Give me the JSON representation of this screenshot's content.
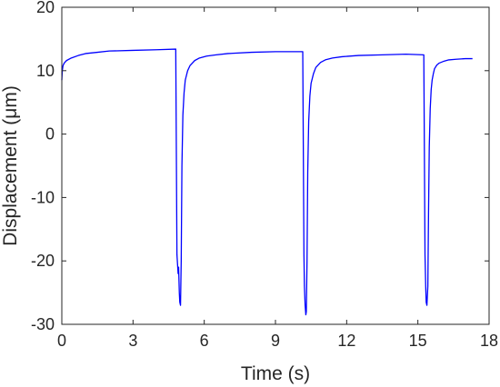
{
  "chart_data": {
    "type": "line",
    "title": "",
    "xlabel": "Time (s)",
    "ylabel": "Displacement (μm)",
    "xlim": [
      0,
      18
    ],
    "ylim": [
      -30,
      20
    ],
    "xticks": [
      0,
      3,
      6,
      9,
      12,
      15,
      18
    ],
    "yticks": [
      -30,
      -20,
      -10,
      0,
      10,
      20
    ],
    "xtick_labels": [
      "0",
      "3",
      "6",
      "9",
      "12",
      "15",
      "18"
    ],
    "ytick_labels": [
      "-30",
      "-20",
      "-10",
      "0",
      "10",
      "20"
    ],
    "grid": false,
    "box": true,
    "line_color": "#0000FF",
    "series": [
      {
        "x": [
          0.0,
          0.02,
          0.05,
          0.1,
          0.2,
          0.4,
          0.7,
          1.0,
          1.5,
          2.0,
          3.0,
          4.0,
          4.8,
          4.85,
          4.9,
          4.92,
          4.95,
          4.97,
          5.0,
          5.03,
          5.06,
          5.1,
          5.15,
          5.2,
          5.3,
          5.4,
          5.6,
          5.8,
          6.1,
          6.5,
          7.0,
          8.0,
          9.0,
          10.0,
          10.15,
          10.2,
          10.22,
          10.25,
          10.28,
          10.3,
          10.33,
          10.36,
          10.4,
          10.45,
          10.5,
          10.6,
          10.7,
          10.9,
          11.1,
          11.4,
          11.8,
          12.5,
          13.5,
          14.5,
          15.25,
          15.3,
          15.33,
          15.35,
          15.38,
          15.42,
          15.45,
          15.48,
          15.52,
          15.56,
          15.6,
          15.65,
          15.7,
          15.8,
          15.9,
          16.1,
          16.3,
          16.6,
          17.0,
          17.3
        ],
        "y": [
          8.5,
          10.0,
          10.8,
          11.2,
          11.6,
          12.0,
          12.4,
          12.7,
          12.9,
          13.1,
          13.2,
          13.3,
          13.4,
          -19.0,
          -22.0,
          -21.0,
          -25.0,
          -26.5,
          -27.0,
          -20.0,
          -5.0,
          3.0,
          6.5,
          8.5,
          10.0,
          10.8,
          11.6,
          12.0,
          12.3,
          12.5,
          12.7,
          12.9,
          13.0,
          13.0,
          13.0,
          -19.0,
          -24.0,
          -27.0,
          -28.5,
          -28.0,
          -20.0,
          -6.0,
          2.0,
          6.0,
          8.0,
          9.5,
          10.5,
          11.3,
          11.7,
          12.0,
          12.2,
          12.4,
          12.5,
          12.6,
          12.5,
          -19.0,
          -24.0,
          -26.5,
          -27.0,
          -24.0,
          -12.0,
          -2.0,
          4.0,
          7.0,
          8.5,
          9.5,
          10.3,
          10.9,
          11.2,
          11.5,
          11.7,
          11.8,
          11.9,
          11.9
        ]
      }
    ]
  }
}
